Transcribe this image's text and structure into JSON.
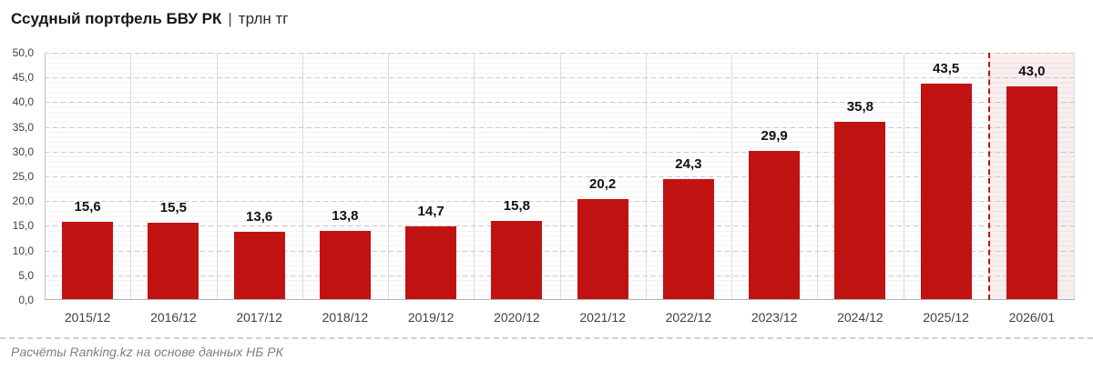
{
  "title": {
    "main": "Ссудный портфель БВУ РК",
    "separator": "|",
    "unit": "трлн тг"
  },
  "footer": {
    "source": "Расчёты Ranking.kz на основе данных НБ РК"
  },
  "colors": {
    "bar": "#c11212",
    "bar_label": "#111111",
    "forecast_line": "#c11212",
    "forecast_region_bg": "rgba(194,15,15,0.07)",
    "major_gridline": "#c9c9c9",
    "minor_gridline": "#f2f2f2",
    "vertical_gridline": "#dcdcdc",
    "axis_line": "#b0b0b0",
    "axis_label_color": "#404040",
    "footer_text": "#7f7f7f"
  },
  "chart_data": {
    "type": "bar",
    "title": "Ссудный портфель БВУ РК | трлн тг",
    "categories": [
      "2015/12",
      "2016/12",
      "2017/12",
      "2018/12",
      "2019/12",
      "2020/12",
      "2021/12",
      "2022/12",
      "2023/12",
      "2024/12",
      "2025/12",
      "2026/01"
    ],
    "values": [
      15.6,
      15.5,
      13.6,
      13.8,
      14.7,
      15.8,
      20.2,
      24.3,
      29.9,
      35.8,
      43.5,
      43.0
    ],
    "value_labels": [
      "15,6",
      "15,5",
      "13,6",
      "13,8",
      "14,7",
      "15,8",
      "20,2",
      "24,3",
      "29,9",
      "35,8",
      "43,5",
      "43,0"
    ],
    "xlabel": "",
    "ylabel": "",
    "ylim": [
      0,
      50
    ],
    "ytick_step": 5,
    "ytick_labels": [
      "0,0",
      "5,0",
      "10,0",
      "15,0",
      "20,0",
      "25,0",
      "30,0",
      "35,0",
      "40,0",
      "45,0",
      "50,0"
    ],
    "grid": true,
    "legend": false,
    "forecast_start_index": 11,
    "forecast_divider": "red-dashed-vertical-line"
  }
}
